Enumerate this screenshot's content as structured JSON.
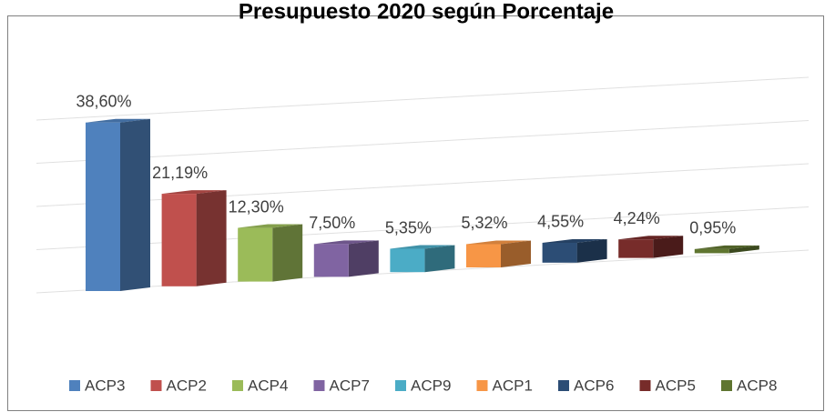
{
  "chart_data": {
    "type": "bar3d",
    "title": "Presupuesto 2020 según Porcentaje",
    "categories": [
      "ACP3",
      "ACP2",
      "ACP4",
      "ACP7",
      "ACP9",
      "ACP1",
      "ACP6",
      "ACP5",
      "ACP8"
    ],
    "values": [
      38.6,
      21.19,
      12.3,
      7.5,
      5.35,
      5.32,
      4.55,
      4.24,
      0.95
    ],
    "value_labels": [
      "38,60%",
      "21,19%",
      "12,30%",
      "7,50%",
      "5,35%",
      "5,32%",
      "4,55%",
      "4,24%",
      "0,95%"
    ],
    "colors": [
      "#4f81bd",
      "#c0504d",
      "#9bbb59",
      "#8064a2",
      "#4bacc6",
      "#f79646",
      "#2c4d75",
      "#772c2a",
      "#5f7530"
    ],
    "legend": "bottom"
  }
}
